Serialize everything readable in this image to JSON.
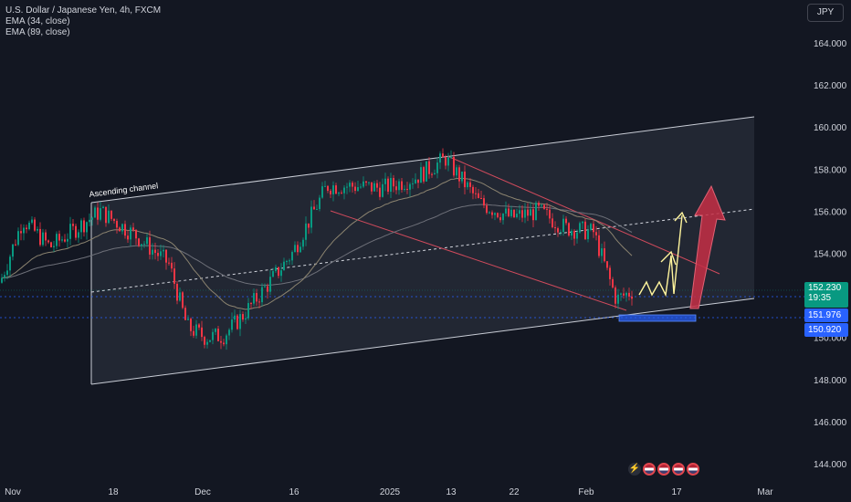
{
  "header": {
    "symbol_title": "U.S. Dollar / Japanese Yen, 4h, FXCM",
    "indicator_1": "EMA (34, close)",
    "indicator_2": "EMA (89, close)",
    "currency_button": "JPY"
  },
  "price_badges": {
    "last_price": "152.230",
    "countdown": "19:35",
    "level_1": "151.976",
    "level_2": "150.920"
  },
  "annotations": {
    "channel_label": "Ascending channel"
  },
  "events": [
    {
      "icon": "flash-icon"
    },
    {
      "icon": "us-flag-icon"
    },
    {
      "icon": "us-flag-icon"
    },
    {
      "icon": "us-flag-icon"
    },
    {
      "icon": "us-flag-icon"
    }
  ],
  "colors": {
    "background": "#131722",
    "up": "#089981",
    "down": "#f23645",
    "ema34": "#8c8470",
    "ema89": "#6e7079",
    "projection": "#fff59d",
    "arrow_red": "#c62f45",
    "last_badge": "#089981",
    "level_badge": "#2962ff"
  },
  "chart_data": {
    "type": "candlestick",
    "y_axis": {
      "range": [
        142.9,
        166.2
      ],
      "tick_labels": [
        "164.000",
        "162.000",
        "160.000",
        "158.000",
        "156.000",
        "154.000",
        "152.000",
        "150.000",
        "148.000",
        "146.000",
        "144.000"
      ],
      "tick_values": [
        164,
        162,
        160,
        158,
        156,
        154,
        152,
        150,
        148,
        146,
        144
      ]
    },
    "x_axis": {
      "tick_labels": [
        "Nov",
        "18",
        "Dec",
        "16",
        "2025",
        "13",
        "22",
        "Feb",
        "17",
        "Mar"
      ]
    },
    "series_approx_close": [
      {
        "x": "Nov 11",
        "y": 152.6
      },
      {
        "x": "Nov 13",
        "y": 155.6
      },
      {
        "x": "Nov 15",
        "y": 154.3
      },
      {
        "x": "Nov 18",
        "y": 156.0
      },
      {
        "x": "Nov 21",
        "y": 154.8
      },
      {
        "x": "Nov 25",
        "y": 153.5
      },
      {
        "x": "Nov 28",
        "y": 150.5
      },
      {
        "x": "Dec 2",
        "y": 150.0
      },
      {
        "x": "Dec 5",
        "y": 150.1
      },
      {
        "x": "Dec 9",
        "y": 151.0
      },
      {
        "x": "Dec 12",
        "y": 152.6
      },
      {
        "x": "Dec 16",
        "y": 154.0
      },
      {
        "x": "Dec 19",
        "y": 157.2
      },
      {
        "x": "Dec 24",
        "y": 157.2
      },
      {
        "x": "Dec 31",
        "y": 157.1
      },
      {
        "x": "Jan 6",
        "y": 157.6
      },
      {
        "x": "Jan 10",
        "y": 158.5
      },
      {
        "x": "Jan 15",
        "y": 156.4
      },
      {
        "x": "Jan 20",
        "y": 155.7
      },
      {
        "x": "Jan 24",
        "y": 156.0
      },
      {
        "x": "Jan 29",
        "y": 155.2
      },
      {
        "x": "Feb 3",
        "y": 155.0
      },
      {
        "x": "Feb 6",
        "y": 151.8
      },
      {
        "x": "Feb 10",
        "y": 152.2
      }
    ],
    "levels": [
      {
        "label": "152.230",
        "value": 152.23
      },
      {
        "label": "151.976",
        "value": 151.976
      },
      {
        "label": "150.920",
        "value": 150.92
      }
    ],
    "legend": [
      "EMA (34, close)",
      "EMA (89, close)"
    ],
    "annotation": "Ascending channel",
    "grid": false
  }
}
